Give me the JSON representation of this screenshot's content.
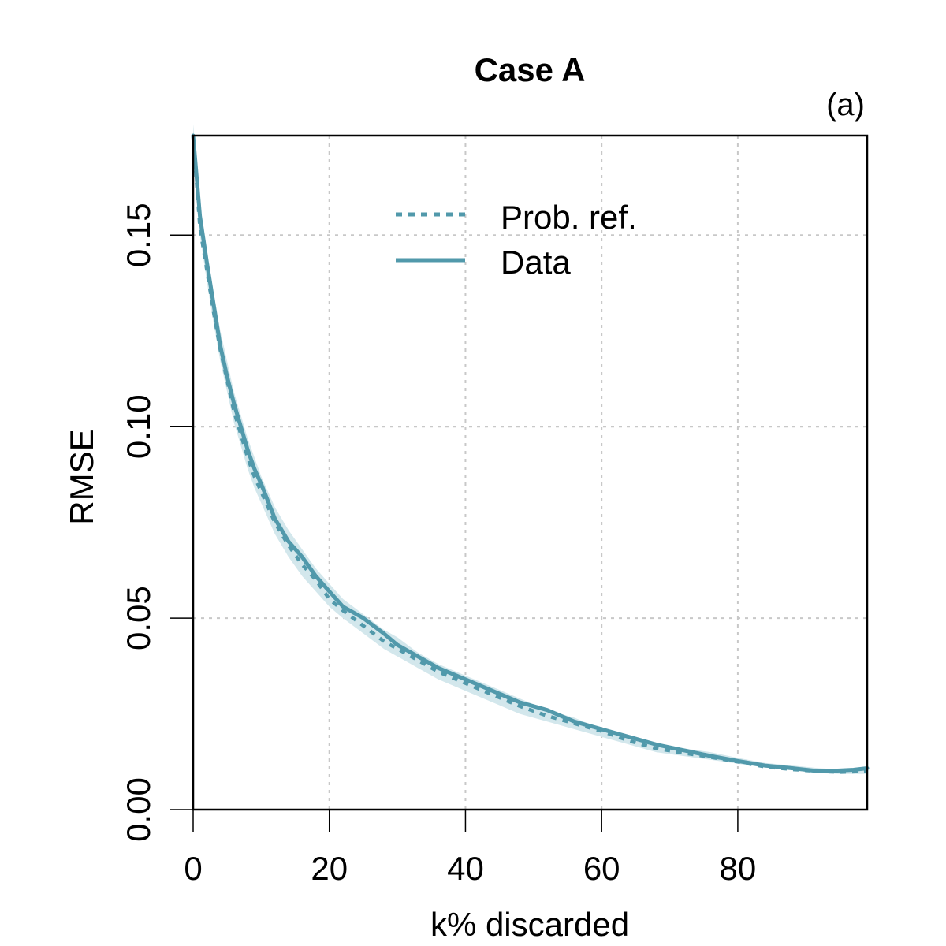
{
  "chart_data": {
    "type": "line",
    "title": "Case A",
    "panel_label": "(a)",
    "xlabel": "k% discarded",
    "ylabel": "RMSE",
    "xlim": [
      0,
      99
    ],
    "ylim": [
      0,
      0.176
    ],
    "xticks": [
      0,
      20,
      40,
      60,
      80
    ],
    "xtick_labels": [
      "0",
      "20",
      "40",
      "60",
      "80"
    ],
    "yticks": [
      0,
      0.05,
      0.1,
      0.15
    ],
    "ytick_labels": [
      "0.00",
      "0.05",
      "0.10",
      "0.15"
    ],
    "grid": true,
    "legend_position": "top-center",
    "colors": {
      "series": "#5199AB",
      "band": "#D3E7EC",
      "grid": "#C8C8C8"
    },
    "x": [
      0,
      1,
      2,
      3,
      4,
      5,
      6,
      7,
      8,
      9,
      10,
      12,
      14,
      16,
      18,
      20,
      22,
      25,
      28,
      30,
      33,
      36,
      40,
      44,
      48,
      52,
      56,
      60,
      64,
      68,
      72,
      76,
      80,
      84,
      88,
      92,
      95,
      97,
      99
    ],
    "band": {
      "lower": [
        0.173,
        0.15,
        0.138,
        0.127,
        0.117,
        0.109,
        0.101,
        0.095,
        0.089,
        0.084,
        0.08,
        0.072,
        0.066,
        0.061,
        0.057,
        0.053,
        0.05,
        0.046,
        0.042,
        0.04,
        0.037,
        0.034,
        0.031,
        0.028,
        0.025,
        0.023,
        0.021,
        0.019,
        0.017,
        0.015,
        0.014,
        0.013,
        0.012,
        0.011,
        0.0103,
        0.0095,
        0.0093,
        0.0093,
        0.0093
      ],
      "upper": [
        0.179,
        0.158,
        0.146,
        0.135,
        0.125,
        0.117,
        0.109,
        0.103,
        0.097,
        0.092,
        0.087,
        0.079,
        0.073,
        0.068,
        0.063,
        0.059,
        0.055,
        0.051,
        0.047,
        0.045,
        0.041,
        0.038,
        0.035,
        0.032,
        0.029,
        0.026,
        0.024,
        0.021,
        0.019,
        0.017,
        0.016,
        0.015,
        0.0135,
        0.0122,
        0.0115,
        0.0108,
        0.0105,
        0.0107,
        0.0112
      ]
    },
    "series": [
      {
        "name": "Prob. ref.",
        "style": "dotted",
        "values": [
          0.176,
          0.152,
          0.141,
          0.13,
          0.12,
          0.112,
          0.104,
          0.098,
          0.092,
          0.087,
          0.083,
          0.075,
          0.069,
          0.064,
          0.06,
          0.055,
          0.052,
          0.048,
          0.044,
          0.042,
          0.039,
          0.036,
          0.033,
          0.03,
          0.027,
          0.0245,
          0.0225,
          0.0205,
          0.018,
          0.016,
          0.0148,
          0.0137,
          0.0125,
          0.0112,
          0.0105,
          0.01,
          0.0098,
          0.0099,
          0.0101
        ]
      },
      {
        "name": "Data",
        "style": "solid",
        "values": [
          0.176,
          0.155,
          0.143,
          0.132,
          0.121,
          0.113,
          0.106,
          0.1,
          0.094,
          0.089,
          0.085,
          0.076,
          0.07,
          0.066,
          0.061,
          0.057,
          0.053,
          0.05,
          0.046,
          0.043,
          0.04,
          0.037,
          0.034,
          0.031,
          0.028,
          0.026,
          0.023,
          0.021,
          0.019,
          0.017,
          0.0155,
          0.014,
          0.0127,
          0.0115,
          0.0108,
          0.01,
          0.0102,
          0.0104,
          0.0108
        ]
      }
    ]
  }
}
